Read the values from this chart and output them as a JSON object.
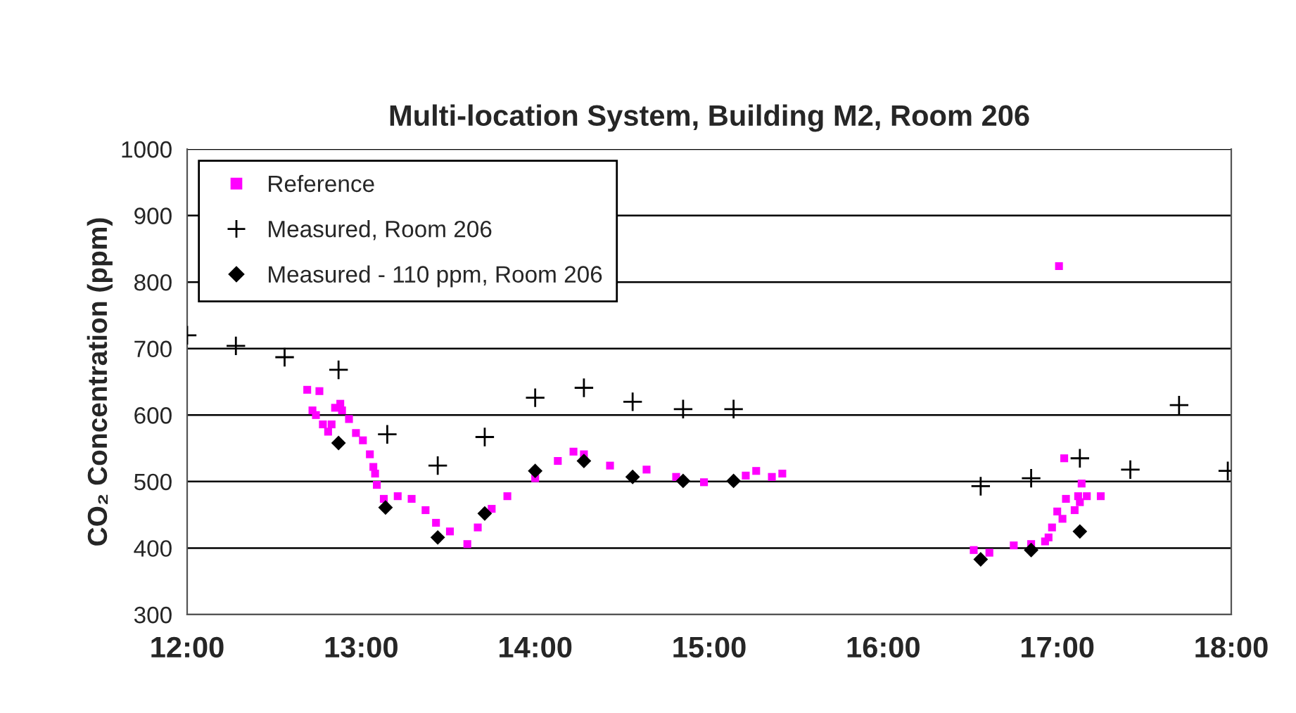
{
  "chart_data": {
    "type": "scatter",
    "title": "Multi-location System, Building M2, Room 206",
    "ylabel": "CO₂ Concentration (ppm)",
    "xlim": [
      12,
      18
    ],
    "xticks": [
      {
        "value": 12,
        "label": "12:00"
      },
      {
        "value": 13,
        "label": "13:00"
      },
      {
        "value": 14,
        "label": "14:00"
      },
      {
        "value": 15,
        "label": "15:00"
      },
      {
        "value": 16,
        "label": "16:00"
      },
      {
        "value": 17,
        "label": "17:00"
      },
      {
        "value": 18,
        "label": "18:00"
      }
    ],
    "ylim": [
      300,
      1000
    ],
    "yticks": [
      300,
      400,
      500,
      600,
      700,
      800,
      900,
      1000
    ],
    "grid": "y",
    "legend": "top left",
    "series": [
      {
        "name": "Reference",
        "color": "#ff00ff",
        "marker": "square",
        "x": [
          12.69,
          12.76,
          12.72,
          12.74,
          12.78,
          12.81,
          12.83,
          12.85,
          12.88,
          12.89,
          12.93,
          12.97,
          13.01,
          13.05,
          13.07,
          13.08,
          13.09,
          13.13,
          13.21,
          13.29,
          13.37,
          13.43,
          13.51,
          13.61,
          13.67,
          13.75,
          13.84,
          14.0,
          14.13,
          14.22,
          14.28,
          14.43,
          14.64,
          14.81,
          14.97,
          15.13,
          15.21,
          15.27,
          15.36,
          15.42,
          16.52,
          16.61,
          16.75,
          16.85,
          16.93,
          16.95,
          16.97,
          17.0,
          17.01,
          17.03,
          17.04,
          17.05,
          17.09,
          17.1,
          17.12,
          17.13,
          17.14,
          17.17,
          17.25
        ],
        "values": [
          638,
          636,
          607,
          600,
          586,
          575,
          586,
          611,
          617,
          607,
          594,
          573,
          562,
          541,
          522,
          512,
          495,
          474,
          478,
          474,
          457,
          438,
          425,
          406,
          431,
          459,
          478,
          505,
          531,
          545,
          541,
          524,
          518,
          507,
          499,
          null,
          509,
          516,
          507,
          512,
          397,
          393,
          404,
          406,
          410,
          416,
          431,
          455,
          824,
          444,
          535,
          474,
          null,
          457,
          478,
          469,
          497,
          478,
          478
        ]
      },
      {
        "name": "Measured, Room 206",
        "color": "#000000",
        "marker": "cross",
        "x": [
          12.0,
          12.28,
          12.56,
          12.87,
          13.15,
          13.44,
          13.71,
          14.0,
          14.28,
          14.56,
          14.85,
          15.14,
          16.56,
          16.85,
          17.13,
          17.42,
          17.7,
          17.98
        ],
        "values": [
          720,
          704,
          687,
          668,
          571,
          524,
          567,
          626,
          641,
          620,
          609,
          609,
          493,
          505,
          535,
          518,
          615,
          516
        ]
      },
      {
        "name": "Measured - 110 ppm, Room 206",
        "color": "#000000",
        "marker": "diamond",
        "x": [
          12.87,
          13.14,
          13.44,
          13.71,
          14.0,
          14.28,
          14.56,
          14.85,
          15.14,
          16.56,
          16.85,
          17.13
        ],
        "values": [
          558,
          461,
          416,
          452,
          516,
          531,
          507,
          501,
          501,
          383,
          397,
          425
        ]
      }
    ]
  }
}
